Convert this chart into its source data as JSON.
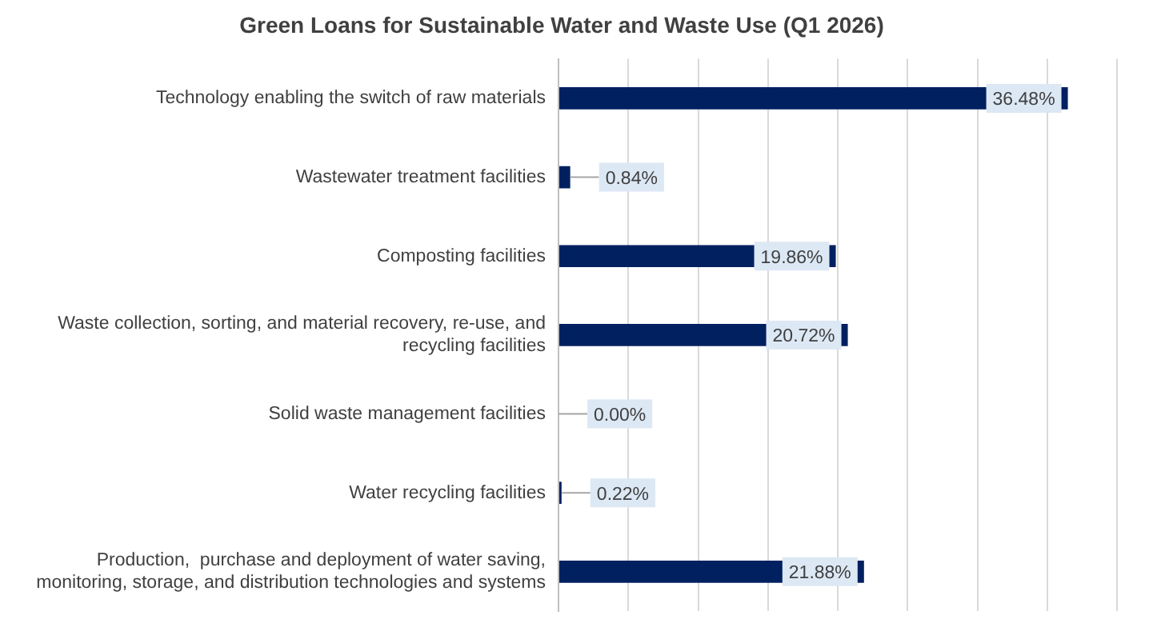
{
  "chart_data": {
    "type": "bar",
    "orientation": "horizontal",
    "title": "Green Loans for Sustainable Water and Waste Use (Q1 2026)",
    "categories": [
      "Technology enabling the switch of raw materials",
      "Wastewater treatment facilities",
      "Composting facilities",
      "Waste collection, sorting, and material recovery, re-use, and recycling facilities",
      "Solid waste management facilities",
      "Water recycling facilities",
      "Production,  purchase and deployment of water saving, monitoring, storage, and distribution technologies and systems"
    ],
    "values": [
      36.48,
      0.84,
      19.86,
      20.72,
      0,
      0.22,
      21.88
    ],
    "value_labels": [
      "36.48%",
      "0.84%",
      "19.86%",
      "20.72%",
      "0.00%",
      "0.22%",
      "21.88%"
    ],
    "color": "#002060",
    "xlim": [
      0,
      40
    ],
    "xticks": [
      {
        "value": 0,
        "label": null
      },
      {
        "value": 5,
        "label": null
      },
      {
        "value": 10,
        "label": null
      },
      {
        "value": 15,
        "label": null
      },
      {
        "value": 20,
        "label": null
      },
      {
        "value": 25,
        "label": null
      },
      {
        "value": 30,
        "label": null
      },
      {
        "value": 35,
        "label": null
      },
      {
        "value": 40,
        "label": null
      }
    ],
    "grid": "x",
    "tick_labels": "y",
    "legend": false
  }
}
